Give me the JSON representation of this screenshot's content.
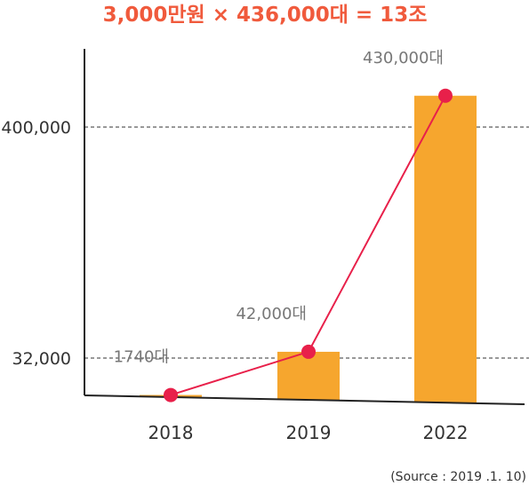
{
  "colors": {
    "title": "#f05a3c",
    "bar": "#f6a62e",
    "line": "#e8204a",
    "axis": "#222222",
    "gridline": "#333333"
  },
  "source": "(Source : 2019 .1. 10)",
  "chart_data": {
    "type": "bar",
    "title": "3,000만원 × 436,000대 = 13조",
    "xlabel": "",
    "ylabel": "",
    "categories": [
      "2018",
      "2019",
      "2022"
    ],
    "values": [
      1740,
      42000,
      430000
    ],
    "data_labels": [
      "1740대",
      "42,000대",
      "430,000대"
    ],
    "overlay": {
      "type": "line",
      "values": [
        1740,
        42000,
        430000
      ]
    },
    "y_scale": "broken",
    "yticks": [
      32000,
      400000
    ],
    "ytick_labels": [
      "32,000",
      "400,000"
    ],
    "grid": "dashed lines at y tick values only",
    "legend": "none"
  }
}
